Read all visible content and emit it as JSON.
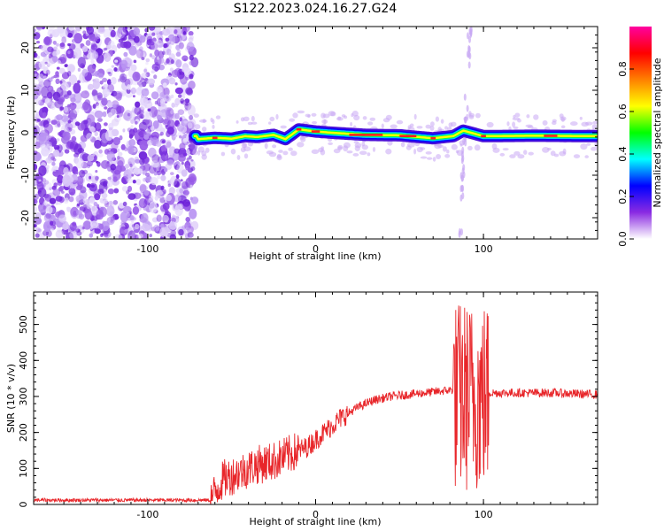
{
  "title": "S122.2023.024.16.27.G24",
  "chart_data": [
    {
      "type": "heatmap",
      "xlabel": "Height of straight line (km)",
      "ylabel": "Frequency (Hz)",
      "xlim": [
        -168,
        168
      ],
      "ylim": [
        -25,
        25
      ],
      "x_ticks": [
        "-100",
        "0",
        "100"
      ],
      "y_ticks": [
        "20",
        "10",
        "0",
        "-10",
        "-20"
      ],
      "colorbar": {
        "label": "Normalized spectral amplitude",
        "range": [
          0,
          1
        ],
        "ticks": [
          "0.0",
          "0.2",
          "0.4",
          "0.6",
          "0.8"
        ],
        "colors": [
          "#ffffff",
          "#8a2be2",
          "#0000ff",
          "#00ffff",
          "#00ff00",
          "#ffff00",
          "#ff8000",
          "#ff0000",
          "#ff00a0"
        ]
      },
      "features": {
        "noise_region_x": [
          -168,
          -72
        ],
        "signal_ridge": [
          [
            -70,
            -1.5
          ],
          [
            -60,
            -1.2
          ],
          [
            -50,
            -1.4
          ],
          [
            -42,
            -0.8
          ],
          [
            -35,
            -1.0
          ],
          [
            -25,
            -0.5
          ],
          [
            -18,
            -1.5
          ],
          [
            -10,
            0.8
          ],
          [
            0,
            0.3
          ],
          [
            10,
            0.0
          ],
          [
            30,
            -0.5
          ],
          [
            50,
            -0.6
          ],
          [
            70,
            -1.3
          ],
          [
            82,
            -0.8
          ],
          [
            88,
            0.5
          ],
          [
            100,
            -0.8
          ],
          [
            130,
            -0.7
          ],
          [
            168,
            -0.8
          ]
        ]
      }
    },
    {
      "type": "line",
      "xlabel": "Height of straight line (km)",
      "ylabel": "SNR (10 * v/v)",
      "xlim": [
        -168,
        168
      ],
      "ylim": [
        0,
        590
      ],
      "x_ticks": [
        "-100",
        "0",
        "100"
      ],
      "y_ticks": [
        "0",
        "100",
        "200",
        "300",
        "400",
        "500"
      ],
      "color": "#e8262a",
      "envelope": {
        "x": [
          -168,
          -63,
          -55,
          -45,
          -35,
          -25,
          -15,
          -5,
          5,
          15,
          25,
          35,
          45,
          55,
          65,
          75,
          85,
          95,
          105,
          120,
          140,
          168
        ],
        "y": [
          12,
          12,
          70,
          90,
          110,
          120,
          140,
          160,
          200,
          240,
          270,
          290,
          300,
          305,
          310,
          315,
          320,
          320,
          310,
          310,
          310,
          305
        ]
      },
      "oscillation_x": [
        82,
        103
      ]
    }
  ]
}
